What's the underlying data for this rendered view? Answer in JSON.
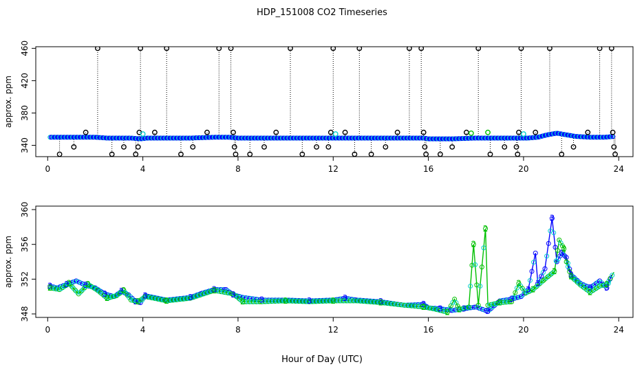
{
  "title": "HDP_151008  CO2 Timeseries",
  "xlabel": "Hour of Day (UTC)",
  "colors": {
    "outlier": "#000000",
    "flag_cyan": "#00d0d0",
    "series3": "#0000ff",
    "series2": "#00c000",
    "axis": "#000000"
  },
  "chart_data": [
    {
      "type": "scatter",
      "panel": "top",
      "ylabel": "approx. ppm",
      "xlim": [
        -0.5,
        24.6
      ],
      "ylim": [
        326,
        462
      ],
      "xticks": [
        0,
        4,
        8,
        12,
        16,
        20,
        24
      ],
      "yticks": [
        340,
        380,
        420,
        460
      ],
      "grid": false,
      "baseline_series": [
        {
          "name": "",
          "points": [
            [
              0.1,
              350
            ],
            [
              0.5,
              350
            ],
            [
              1.0,
              350
            ],
            [
              1.5,
              350
            ],
            [
              2.0,
              350
            ],
            [
              2.5,
              349
            ],
            [
              3.0,
              349
            ],
            [
              3.5,
              349
            ],
            [
              3.9,
              348
            ],
            [
              4.2,
              349
            ],
            [
              5.0,
              349
            ],
            [
              6.0,
              349
            ],
            [
              7.0,
              350
            ],
            [
              7.6,
              350
            ],
            [
              8.0,
              349
            ],
            [
              9.0,
              349
            ],
            [
              10.0,
              349
            ],
            [
              11.0,
              349
            ],
            [
              12.0,
              349
            ],
            [
              13.0,
              349
            ],
            [
              14.0,
              349
            ],
            [
              15.0,
              349
            ],
            [
              15.8,
              349
            ],
            [
              16.0,
              348
            ],
            [
              17.0,
              348
            ],
            [
              18.0,
              349
            ],
            [
              19.0,
              349
            ],
            [
              19.9,
              349
            ],
            [
              20.2,
              349
            ],
            [
              20.6,
              350
            ],
            [
              21.0,
              353
            ],
            [
              21.4,
              355
            ],
            [
              21.8,
              353
            ],
            [
              22.2,
              351
            ],
            [
              22.8,
              350
            ],
            [
              23.4,
              350
            ],
            [
              23.8,
              351
            ]
          ]
        }
      ],
      "outliers": [
        [
          0.5,
          329
        ],
        [
          1.1,
          338
        ],
        [
          1.6,
          356
        ],
        [
          2.1,
          460
        ],
        [
          2.7,
          329
        ],
        [
          3.2,
          338
        ],
        [
          3.7,
          329
        ],
        [
          3.8,
          338
        ],
        [
          3.85,
          356
        ],
        [
          3.9,
          460
        ],
        [
          4.5,
          356
        ],
        [
          5.0,
          460
        ],
        [
          5.6,
          329
        ],
        [
          6.1,
          338
        ],
        [
          6.7,
          356
        ],
        [
          7.2,
          460
        ],
        [
          7.7,
          460
        ],
        [
          7.8,
          356
        ],
        [
          7.85,
          338
        ],
        [
          7.9,
          329
        ],
        [
          8.5,
          329
        ],
        [
          9.1,
          338
        ],
        [
          9.6,
          356
        ],
        [
          10.2,
          460
        ],
        [
          10.7,
          329
        ],
        [
          11.3,
          338
        ],
        [
          11.8,
          338
        ],
        [
          11.9,
          356
        ],
        [
          12.0,
          460
        ],
        [
          12.5,
          356
        ],
        [
          12.9,
          329
        ],
        [
          13.1,
          460
        ],
        [
          13.6,
          329
        ],
        [
          14.2,
          338
        ],
        [
          14.7,
          356
        ],
        [
          15.2,
          460
        ],
        [
          15.7,
          460
        ],
        [
          15.8,
          356
        ],
        [
          15.85,
          338
        ],
        [
          15.9,
          329
        ],
        [
          16.5,
          329
        ],
        [
          17.0,
          338
        ],
        [
          17.6,
          356
        ],
        [
          18.1,
          460
        ],
        [
          18.6,
          329
        ],
        [
          19.2,
          338
        ],
        [
          19.7,
          338
        ],
        [
          19.75,
          329
        ],
        [
          19.8,
          356
        ],
        [
          19.9,
          460
        ],
        [
          20.5,
          356
        ],
        [
          21.1,
          460
        ],
        [
          21.6,
          329
        ],
        [
          22.1,
          338
        ],
        [
          22.7,
          356
        ],
        [
          23.2,
          460
        ],
        [
          23.7,
          460
        ],
        [
          23.75,
          356
        ],
        [
          23.8,
          338
        ],
        [
          23.85,
          329
        ]
      ],
      "cyan_flags": [
        [
          4.0,
          354
        ],
        [
          12.1,
          354
        ],
        [
          20.0,
          354
        ]
      ],
      "green_flags": [
        [
          17.8,
          355
        ],
        [
          18.5,
          356
        ]
      ]
    },
    {
      "type": "line",
      "panel": "bottom",
      "ylabel": "approx. ppm",
      "xlim": [
        -0.5,
        24.6
      ],
      "ylim": [
        347.6,
        360.4
      ],
      "xticks": [
        0,
        4,
        8,
        12,
        16,
        20,
        24
      ],
      "yticks": [
        348,
        352,
        356,
        360
      ],
      "grid": false,
      "series": [
        {
          "name": "3",
          "points": [
            [
              0.1,
              351.2
            ],
            [
              0.4,
              351.0
            ],
            [
              0.8,
              351.4
            ],
            [
              1.2,
              351.8
            ],
            [
              1.6,
              351.3
            ],
            [
              2.0,
              351.0
            ],
            [
              2.4,
              350.3
            ],
            [
              2.8,
              350.0
            ],
            [
              3.1,
              350.6
            ],
            [
              3.4,
              350.2
            ],
            [
              3.7,
              349.4
            ],
            [
              3.9,
              349.3
            ],
            [
              4.1,
              350.1
            ],
            [
              5.0,
              349.6
            ],
            [
              6.0,
              349.9
            ],
            [
              6.5,
              350.4
            ],
            [
              7.0,
              350.8
            ],
            [
              7.5,
              350.8
            ],
            [
              7.8,
              350.2
            ],
            [
              8.2,
              349.9
            ],
            [
              9.0,
              349.6
            ],
            [
              10.0,
              349.6
            ],
            [
              11.0,
              349.5
            ],
            [
              12.0,
              349.6
            ],
            [
              12.5,
              349.8
            ],
            [
              13.0,
              349.6
            ],
            [
              14.0,
              349.4
            ],
            [
              15.0,
              349.0
            ],
            [
              15.8,
              349.1
            ],
            [
              16.0,
              348.7
            ],
            [
              16.5,
              348.6
            ],
            [
              17.0,
              348.4
            ],
            [
              17.5,
              348.6
            ],
            [
              18.0,
              348.8
            ],
            [
              18.5,
              348.3
            ],
            [
              19.0,
              349.5
            ],
            [
              19.5,
              349.7
            ],
            [
              19.9,
              350.0
            ],
            [
              20.2,
              350.8
            ],
            [
              20.5,
              355.0
            ],
            [
              20.6,
              351.5
            ],
            [
              20.9,
              353.2
            ],
            [
              21.2,
              359.0
            ],
            [
              21.4,
              354.0
            ],
            [
              21.6,
              355.0
            ],
            [
              21.8,
              354.5
            ],
            [
              22.0,
              352.5
            ],
            [
              22.4,
              351.5
            ],
            [
              22.8,
              351.0
            ],
            [
              23.2,
              351.8
            ],
            [
              23.5,
              351.0
            ],
            [
              23.7,
              352.5
            ]
          ]
        },
        {
          "name": "2",
          "points": [
            [
              0.1,
              351.0
            ],
            [
              0.5,
              350.8
            ],
            [
              0.9,
              351.5
            ],
            [
              1.3,
              350.3
            ],
            [
              1.7,
              351.4
            ],
            [
              2.1,
              350.7
            ],
            [
              2.5,
              349.8
            ],
            [
              2.9,
              350.1
            ],
            [
              3.2,
              350.7
            ],
            [
              3.5,
              349.6
            ],
            [
              3.8,
              349.4
            ],
            [
              4.1,
              350.0
            ],
            [
              5.0,
              349.5
            ],
            [
              6.0,
              349.8
            ],
            [
              7.0,
              350.7
            ],
            [
              7.8,
              350.3
            ],
            [
              8.2,
              349.4
            ],
            [
              9.0,
              349.4
            ],
            [
              10.0,
              349.5
            ],
            [
              11.0,
              349.4
            ],
            [
              12.0,
              349.5
            ],
            [
              13.0,
              349.5
            ],
            [
              14.0,
              349.3
            ],
            [
              15.0,
              349.0
            ],
            [
              15.8,
              348.8
            ],
            [
              16.2,
              348.6
            ],
            [
              16.8,
              348.2
            ],
            [
              17.1,
              349.7
            ],
            [
              17.3,
              348.5
            ],
            [
              17.7,
              348.8
            ],
            [
              17.9,
              356.0
            ],
            [
              18.1,
              349.0
            ],
            [
              18.4,
              357.8
            ],
            [
              18.5,
              349.0
            ],
            [
              19.0,
              349.3
            ],
            [
              19.5,
              349.4
            ],
            [
              19.8,
              351.5
            ],
            [
              20.1,
              350.4
            ],
            [
              20.4,
              350.8
            ],
            [
              20.9,
              352.0
            ],
            [
              21.3,
              352.9
            ],
            [
              21.5,
              356.5
            ],
            [
              21.7,
              355.5
            ],
            [
              21.8,
              354.0
            ],
            [
              22.0,
              352.3
            ],
            [
              22.4,
              351.3
            ],
            [
              22.8,
              350.5
            ],
            [
              23.2,
              351.2
            ],
            [
              23.5,
              351.4
            ],
            [
              23.8,
              352.8
            ]
          ]
        }
      ]
    }
  ]
}
